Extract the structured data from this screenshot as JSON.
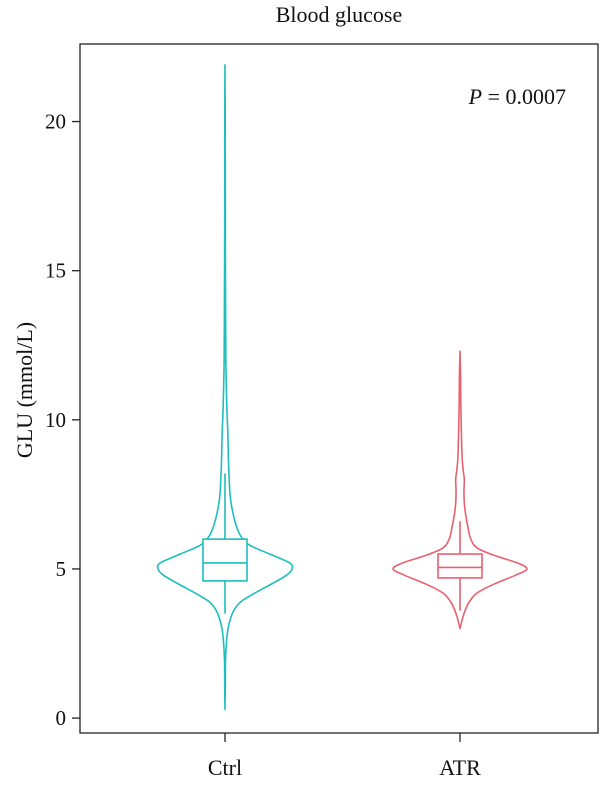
{
  "chart_data": {
    "type": "violin",
    "title": "Blood glucose",
    "ylabel": "GLU (mmol/L)",
    "xlabel": "",
    "ylim": [
      -0.5,
      22.6
    ],
    "yticks": [
      0,
      5,
      10,
      15,
      20
    ],
    "categories": [
      "Ctrl",
      "ATR"
    ],
    "annotation": {
      "p_label": "P",
      "p_value_text": " = 0.0007"
    },
    "grid": false,
    "series": [
      {
        "category": "Ctrl",
        "color": "#1fbdbd",
        "min": 0.3,
        "max": 21.9,
        "box": {
          "q1": 4.6,
          "median": 5.2,
          "q3": 6.0
        },
        "whiskers": [
          3.5,
          8.2
        ],
        "density": [
          [
            0.3,
            0.0
          ],
          [
            1.0,
            0.004
          ],
          [
            2.0,
            0.008
          ],
          [
            2.8,
            0.03
          ],
          [
            3.2,
            0.06
          ],
          [
            3.6,
            0.12
          ],
          [
            3.9,
            0.22
          ],
          [
            4.2,
            0.42
          ],
          [
            4.5,
            0.65
          ],
          [
            4.8,
            0.86
          ],
          [
            5.0,
            0.93
          ],
          [
            5.2,
            0.9
          ],
          [
            5.5,
            0.62
          ],
          [
            5.8,
            0.34
          ],
          [
            6.1,
            0.22
          ],
          [
            6.5,
            0.15
          ],
          [
            7.0,
            0.1
          ],
          [
            7.5,
            0.07
          ],
          [
            8.5,
            0.05
          ],
          [
            9.5,
            0.04
          ],
          [
            10.5,
            0.025
          ],
          [
            12.0,
            0.012
          ],
          [
            14.0,
            0.008
          ],
          [
            16.0,
            0.005
          ],
          [
            18.0,
            0.004
          ],
          [
            20.0,
            0.003
          ],
          [
            21.9,
            0.0
          ]
        ]
      },
      {
        "category": "ATR",
        "color": "#e8616f",
        "min": 3.0,
        "max": 12.3,
        "box": {
          "q1": 4.7,
          "median": 5.05,
          "q3": 5.5
        },
        "whiskers": [
          3.6,
          6.6
        ],
        "density": [
          [
            3.0,
            0.0
          ],
          [
            3.3,
            0.03
          ],
          [
            3.6,
            0.07
          ],
          [
            3.9,
            0.13
          ],
          [
            4.2,
            0.24
          ],
          [
            4.5,
            0.48
          ],
          [
            4.8,
            0.78
          ],
          [
            5.0,
            0.93
          ],
          [
            5.2,
            0.8
          ],
          [
            5.45,
            0.48
          ],
          [
            5.7,
            0.24
          ],
          [
            6.0,
            0.15
          ],
          [
            6.4,
            0.11
          ],
          [
            6.8,
            0.08
          ],
          [
            7.2,
            0.06
          ],
          [
            7.6,
            0.055
          ],
          [
            8.0,
            0.06
          ],
          [
            8.3,
            0.045
          ],
          [
            8.7,
            0.03
          ],
          [
            9.5,
            0.02
          ],
          [
            10.5,
            0.012
          ],
          [
            11.5,
            0.008
          ],
          [
            12.3,
            0.0
          ]
        ]
      }
    ]
  }
}
